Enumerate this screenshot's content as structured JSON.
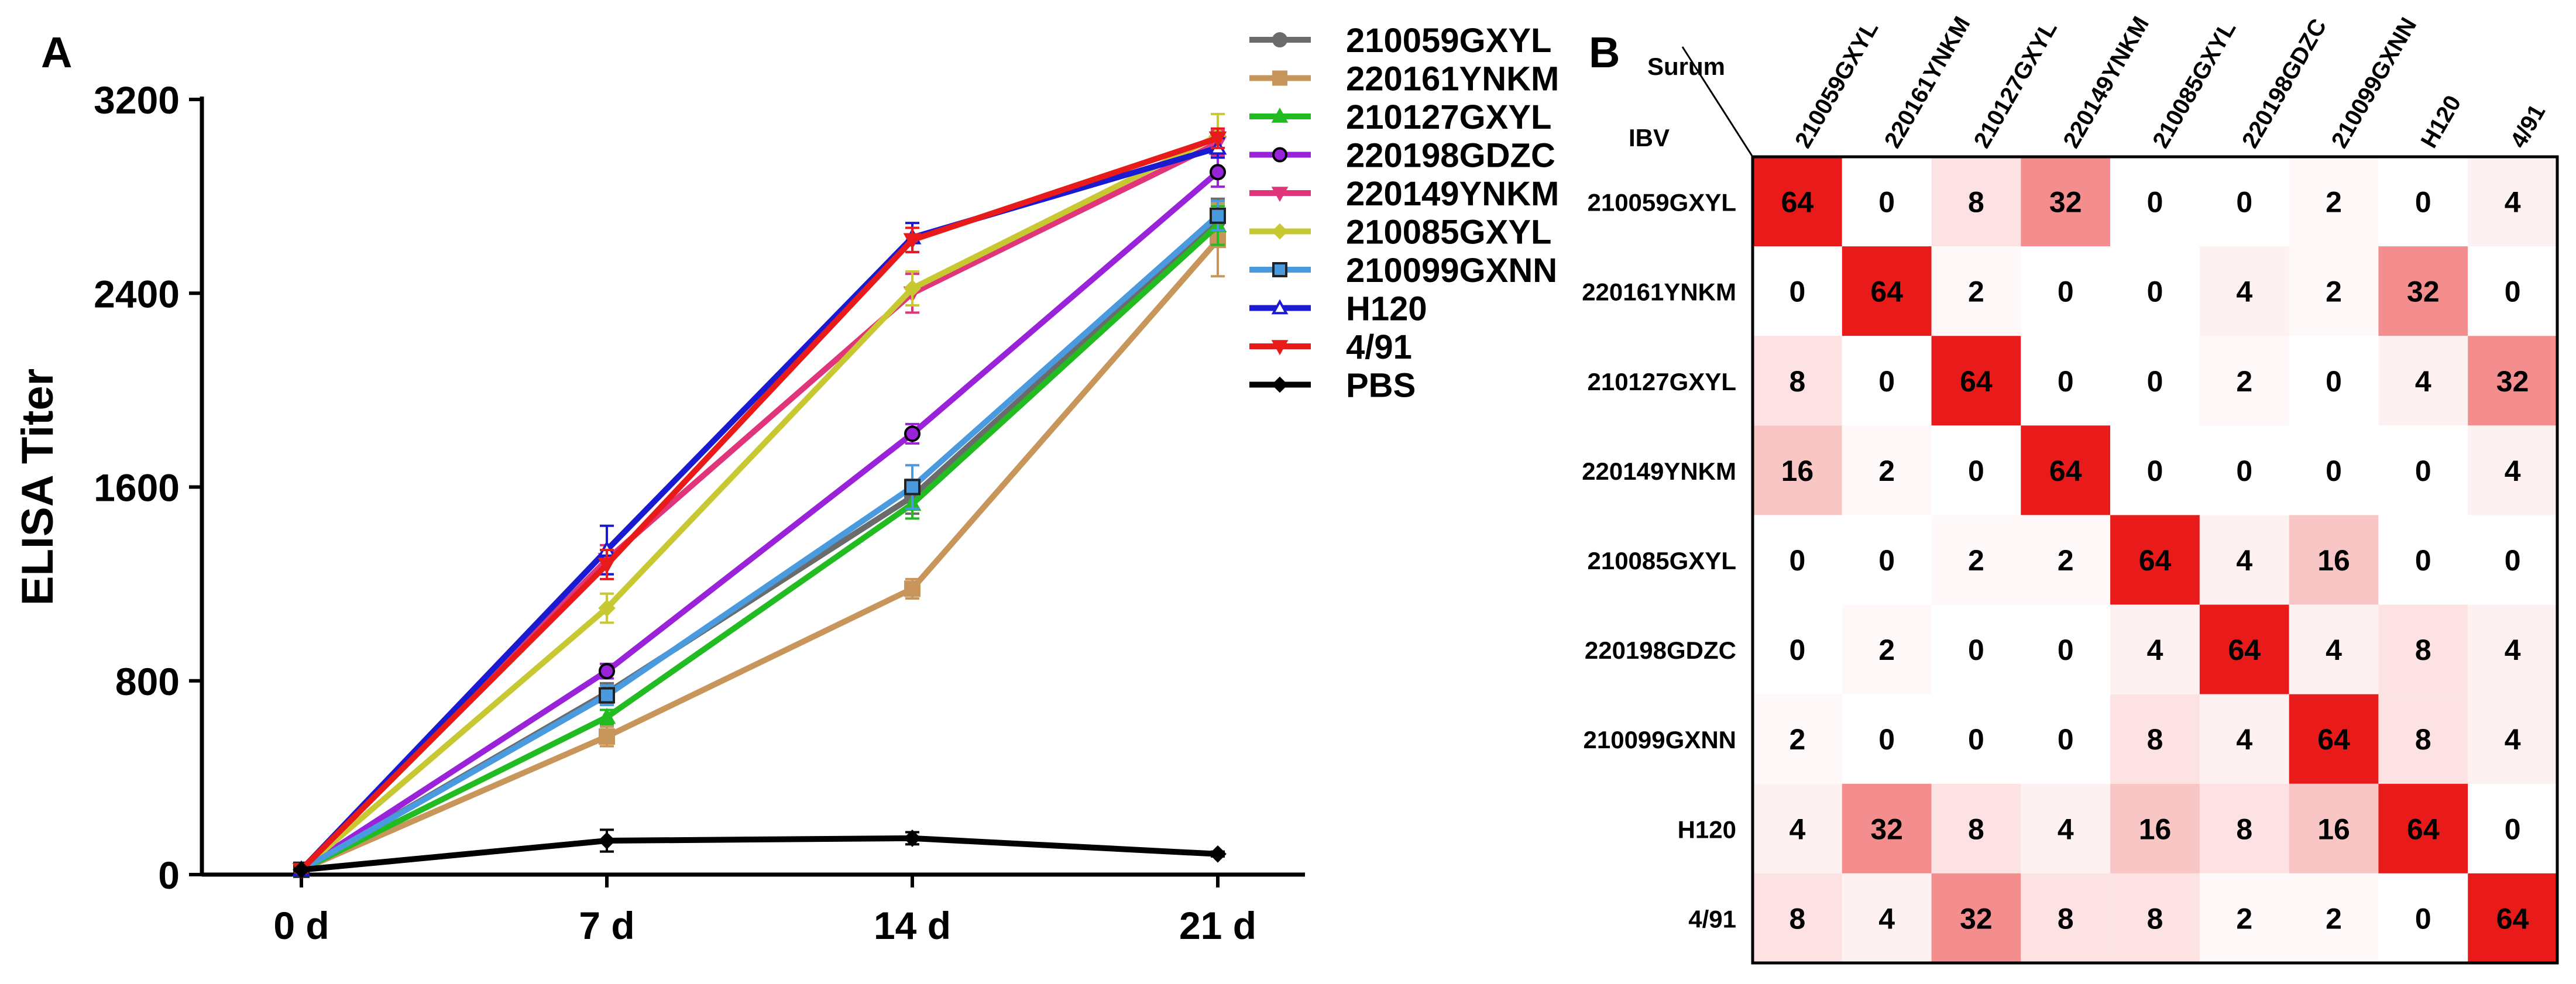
{
  "panel_a_label": "A",
  "panel_b_label": "B",
  "chart_data": [
    {
      "type": "line",
      "title": "",
      "xlabel": "",
      "ylabel": "ELISA Titer",
      "categories": [
        "0 d",
        "7 d",
        "14 d",
        "21 d"
      ],
      "ylim": [
        0,
        3200
      ],
      "yticks": [
        "0",
        "800",
        "1600",
        "2400",
        "3200"
      ],
      "series": [
        {
          "name": "210059GXYL",
          "color": "#6b6b6b",
          "marker": "circle",
          "values": [
            20,
            750,
            1560,
            2700
          ],
          "errors": [
            10,
            40,
            70,
            90
          ]
        },
        {
          "name": "220161YNKM",
          "color": "#c8955a",
          "marker": "square",
          "values": [
            20,
            570,
            1180,
            2620
          ],
          "errors": [
            10,
            40,
            40,
            150
          ]
        },
        {
          "name": "210127GXYL",
          "color": "#22bb22",
          "marker": "triangle-up",
          "values": [
            20,
            650,
            1530,
            2680
          ],
          "errors": [
            10,
            30,
            60,
            80
          ]
        },
        {
          "name": "220198GDZC",
          "color": "#9a22d8",
          "marker": "circle-open",
          "values": [
            20,
            840,
            1820,
            2900
          ],
          "errors": [
            10,
            30,
            40,
            60
          ]
        },
        {
          "name": "220149YNKM",
          "color": "#e0357a",
          "marker": "triangle-down",
          "values": [
            20,
            1300,
            2400,
            3020
          ],
          "errors": [
            10,
            60,
            80,
            50
          ]
        },
        {
          "name": "210085GXYL",
          "color": "#c8c832",
          "marker": "diamond",
          "values": [
            20,
            1100,
            2420,
            3050
          ],
          "errors": [
            10,
            60,
            70,
            90
          ]
        },
        {
          "name": "210099GXNN",
          "color": "#4a9ae0",
          "marker": "square-open",
          "values": [
            20,
            740,
            1600,
            2720
          ],
          "errors": [
            10,
            40,
            90,
            60
          ]
        },
        {
          "name": "H120",
          "color": "#1a1ad0",
          "marker": "triangle-open",
          "values": [
            20,
            1340,
            2630,
            3000
          ],
          "errors": [
            10,
            100,
            60,
            40
          ]
        },
        {
          "name": "4/91",
          "color": "#e81a1a",
          "marker": "triangle-down",
          "values": [
            20,
            1280,
            2620,
            3040
          ],
          "errors": [
            10,
            60,
            50,
            40
          ]
        },
        {
          "name": "PBS",
          "color": "#000000",
          "marker": "diamond",
          "values": [
            20,
            140,
            150,
            85
          ],
          "errors": [
            5,
            45,
            25,
            10
          ]
        }
      ]
    },
    {
      "type": "heatmap",
      "corner_row_label": "Surum",
      "corner_col_label": "IBV",
      "columns": [
        "210059GXYL",
        "220161YNKM",
        "210127GXYL",
        "220149YNKM",
        "210085GXYL",
        "220198GDZC",
        "210099GXNN",
        "H120",
        "4/91"
      ],
      "rows": [
        "210059GXYL",
        "220161YNKM",
        "210127GXYL",
        "220149YNKM",
        "210085GXYL",
        "220198GDZC",
        "210099GXNN",
        "H120",
        "4/91"
      ],
      "values": [
        [
          64,
          0,
          8,
          32,
          0,
          0,
          2,
          0,
          4
        ],
        [
          0,
          64,
          2,
          0,
          0,
          4,
          2,
          32,
          0
        ],
        [
          8,
          0,
          64,
          0,
          0,
          2,
          0,
          4,
          32
        ],
        [
          16,
          2,
          0,
          64,
          0,
          0,
          0,
          0,
          4
        ],
        [
          0,
          0,
          2,
          2,
          64,
          4,
          16,
          0,
          0
        ],
        [
          0,
          2,
          0,
          0,
          4,
          64,
          4,
          8,
          4
        ],
        [
          2,
          0,
          0,
          0,
          8,
          4,
          64,
          8,
          4
        ],
        [
          4,
          32,
          8,
          4,
          16,
          8,
          16,
          64,
          0
        ],
        [
          8,
          4,
          32,
          8,
          8,
          2,
          2,
          0,
          64
        ]
      ],
      "color_scale": {
        "min": 0,
        "max": 64,
        "low_color": "#ffffff",
        "high_color": "#e81a1a"
      }
    }
  ]
}
